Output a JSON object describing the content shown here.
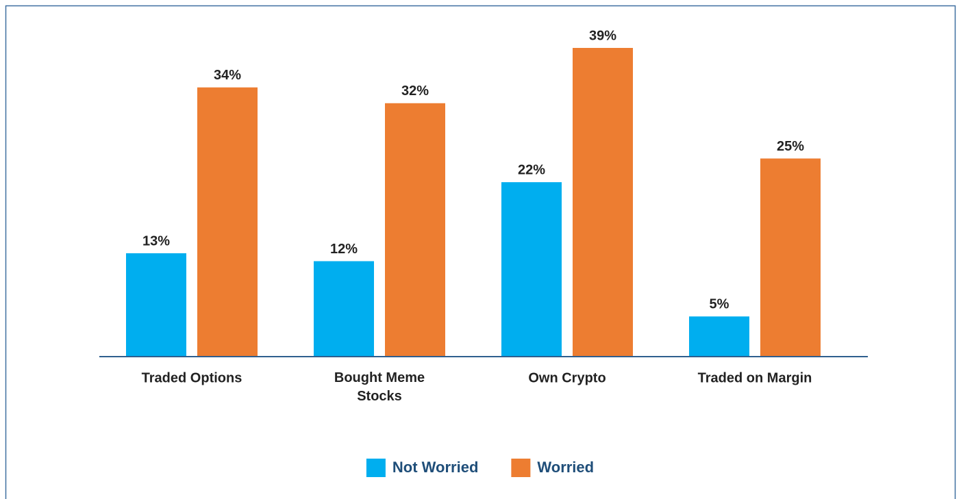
{
  "chart_data": {
    "type": "bar",
    "categories": [
      "Traded Options",
      "Bought Meme Stocks",
      "Own Crypto",
      "Traded on Margin"
    ],
    "series": [
      {
        "name": "Not Worried",
        "color": "#00aeef",
        "values": [
          13,
          12,
          22,
          5
        ],
        "value_labels": [
          "13%",
          "12%",
          "22%",
          "5%"
        ]
      },
      {
        "name": "Worried",
        "color": "#ed7d31",
        "values": [
          34,
          32,
          39,
          25
        ],
        "value_labels": [
          "34%",
          "32%",
          "39%",
          "25%"
        ]
      }
    ],
    "legend": "bottom"
  }
}
